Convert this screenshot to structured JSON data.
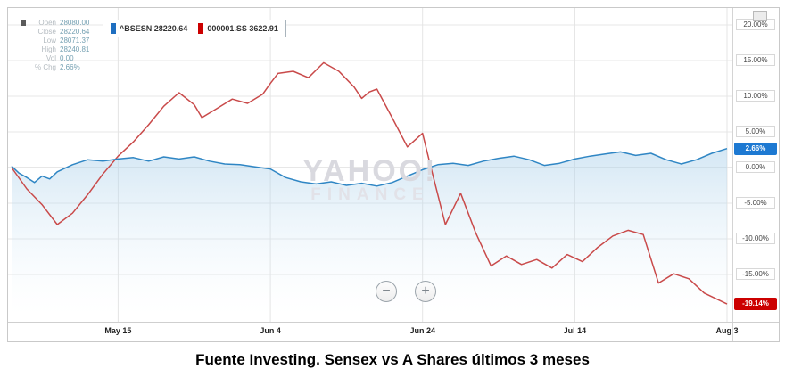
{
  "caption": "Fuente Investing. Sensex vs A Shares últimos 3 meses",
  "watermark": {
    "line1": "YAHOO!",
    "line2": "FINANCE"
  },
  "quote_panel": {
    "rows": [
      {
        "label": "Open",
        "value": "28080.00"
      },
      {
        "label": "Close",
        "value": "28220.64"
      },
      {
        "label": "Low",
        "value": "28071.37"
      },
      {
        "label": "High",
        "value": "28240.81"
      },
      {
        "label": "Vol",
        "value": "0.00"
      },
      {
        "label": "% Chg",
        "value": "2.66%"
      }
    ]
  },
  "legend": [
    {
      "symbol": "^BSESN",
      "value": "28220.64",
      "color": "#1f6fc0"
    },
    {
      "symbol": "000001.SS",
      "value": "3622.91",
      "color": "#cc0000"
    }
  ],
  "toolbar": {
    "zoom_out": "−",
    "zoom_in": "+"
  },
  "chart_data": {
    "type": "line",
    "title": "Sensex (^BSESN) vs Shanghai A Shares (000001.SS) percent change, last 3 months",
    "xlabel": "",
    "ylabel": "% change",
    "x_unit": "days since May 1",
    "x_max_day": 94,
    "grid": true,
    "legend_position": "top-left",
    "ylim": [
      -21.5,
      22.5
    ],
    "x_ticks": [
      {
        "label": "May 15",
        "day": 14
      },
      {
        "label": "Jun 4",
        "day": 34
      },
      {
        "label": "Jun 24",
        "day": 54
      },
      {
        "label": "Jul 14",
        "day": 74
      },
      {
        "label": "Aug 3",
        "day": 94
      }
    ],
    "y_ticks": [
      {
        "label": "20.00%",
        "value": 20
      },
      {
        "label": "15.00%",
        "value": 15
      },
      {
        "label": "10.00%",
        "value": 10
      },
      {
        "label": "5.00%",
        "value": 5
      },
      {
        "label": "0.00%",
        "value": 0
      },
      {
        "label": "-5.00%",
        "value": -5
      },
      {
        "label": "-10.00%",
        "value": -10
      },
      {
        "label": "-15.00%",
        "value": -15
      }
    ],
    "series": [
      {
        "name": "^BSESN",
        "color": "#2f86c4",
        "badge_color": "#1d79d2",
        "last_label": "2.66%",
        "area_fill": true,
        "points": [
          [
            0,
            0.2
          ],
          [
            1,
            -0.8
          ],
          [
            2,
            -1.4
          ],
          [
            3,
            -2.1
          ],
          [
            4,
            -1.2
          ],
          [
            5,
            -1.6
          ],
          [
            6,
            -0.6
          ],
          [
            8,
            0.4
          ],
          [
            10,
            1.1
          ],
          [
            12,
            0.9
          ],
          [
            14,
            1.2
          ],
          [
            16,
            1.4
          ],
          [
            18,
            0.9
          ],
          [
            20,
            1.5
          ],
          [
            22,
            1.2
          ],
          [
            24,
            1.5
          ],
          [
            26,
            0.9
          ],
          [
            28,
            0.5
          ],
          [
            30,
            0.4
          ],
          [
            32,
            0.1
          ],
          [
            34,
            -0.2
          ],
          [
            36,
            -1.4
          ],
          [
            38,
            -2.0
          ],
          [
            40,
            -2.3
          ],
          [
            42,
            -2.0
          ],
          [
            44,
            -2.5
          ],
          [
            46,
            -2.2
          ],
          [
            48,
            -2.6
          ],
          [
            50,
            -2.1
          ],
          [
            52,
            -1.2
          ],
          [
            54,
            -0.3
          ],
          [
            56,
            0.4
          ],
          [
            58,
            0.6
          ],
          [
            60,
            0.3
          ],
          [
            62,
            0.9
          ],
          [
            64,
            1.3
          ],
          [
            66,
            1.6
          ],
          [
            68,
            1.1
          ],
          [
            70,
            0.3
          ],
          [
            72,
            0.6
          ],
          [
            74,
            1.2
          ],
          [
            76,
            1.6
          ],
          [
            78,
            1.9
          ],
          [
            80,
            2.2
          ],
          [
            82,
            1.7
          ],
          [
            84,
            2.0
          ],
          [
            86,
            1.1
          ],
          [
            88,
            0.5
          ],
          [
            90,
            1.1
          ],
          [
            92,
            2.0
          ],
          [
            94,
            2.66
          ]
        ]
      },
      {
        "name": "000001.SS",
        "color": "#c94a4a",
        "badge_color": "#cc0000",
        "last_label": "-19.14%",
        "area_fill": false,
        "points": [
          [
            0,
            0.0
          ],
          [
            2,
            -3.0
          ],
          [
            4,
            -5.2
          ],
          [
            6,
            -8.0
          ],
          [
            8,
            -6.4
          ],
          [
            10,
            -3.8
          ],
          [
            12,
            -0.9
          ],
          [
            14,
            1.6
          ],
          [
            16,
            3.6
          ],
          [
            18,
            6.0
          ],
          [
            20,
            8.6
          ],
          [
            22,
            10.5
          ],
          [
            24,
            8.8
          ],
          [
            25,
            7.0
          ],
          [
            27,
            8.3
          ],
          [
            29,
            9.6
          ],
          [
            31,
            9.0
          ],
          [
            33,
            10.3
          ],
          [
            34,
            11.8
          ],
          [
            35,
            13.2
          ],
          [
            37,
            13.5
          ],
          [
            39,
            12.6
          ],
          [
            41,
            14.7
          ],
          [
            43,
            13.5
          ],
          [
            45,
            11.3
          ],
          [
            46,
            9.7
          ],
          [
            47,
            10.6
          ],
          [
            48,
            11.0
          ],
          [
            50,
            7.0
          ],
          [
            52,
            2.9
          ],
          [
            54,
            4.8
          ],
          [
            55,
            0.4
          ],
          [
            57,
            -8.0
          ],
          [
            59,
            -3.6
          ],
          [
            61,
            -9.2
          ],
          [
            63,
            -13.8
          ],
          [
            65,
            -12.4
          ],
          [
            67,
            -13.6
          ],
          [
            69,
            -12.9
          ],
          [
            71,
            -14.1
          ],
          [
            73,
            -12.2
          ],
          [
            75,
            -13.2
          ],
          [
            77,
            -11.2
          ],
          [
            79,
            -9.6
          ],
          [
            81,
            -8.8
          ],
          [
            83,
            -9.4
          ],
          [
            85,
            -16.2
          ],
          [
            87,
            -14.9
          ],
          [
            89,
            -15.6
          ],
          [
            91,
            -17.6
          ],
          [
            94,
            -19.14
          ]
        ]
      }
    ]
  }
}
